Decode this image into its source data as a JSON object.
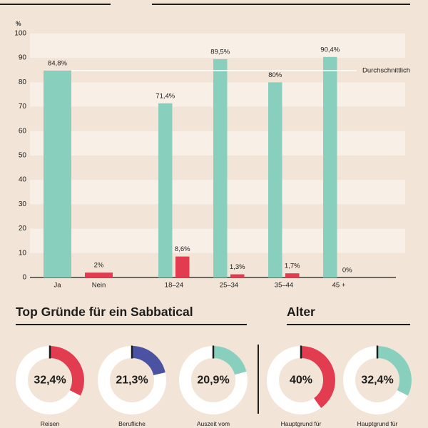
{
  "colors": {
    "background": "#f2e4d6",
    "band": "#f8efe7",
    "text": "#1d1d1b",
    "track": "#ffffff",
    "reference_line": "#ffffff"
  },
  "chart_data": [
    {
      "type": "bar",
      "ylabel": "%",
      "ylim": [
        0,
        100
      ],
      "yticks": [
        0,
        10,
        20,
        30,
        40,
        50,
        60,
        70,
        80,
        90,
        100
      ],
      "grid": true,
      "categories": [
        "Ja",
        "Nein",
        "18–24",
        "25–34",
        "35–44",
        "45 +"
      ],
      "series": [
        {
          "color": "#88d0bd",
          "values": [
            84.8,
            null,
            71.4,
            89.5,
            80,
            90.4
          ],
          "labels": [
            "84,8%",
            null,
            "71,4%",
            "89,5%",
            "80%",
            "90,4%"
          ]
        },
        {
          "color": "#e23c50",
          "values": [
            null,
            2,
            8.6,
            1.3,
            1.7,
            0
          ],
          "labels": [
            null,
            "2%",
            "8,6%",
            "1,3%",
            "1,7%",
            "0%"
          ]
        }
      ],
      "reference_line": {
        "label": "Durchschnittlich",
        "value": 84.8
      }
    },
    {
      "type": "pie",
      "title": "Top Gründe für ein Sabbatical",
      "items": [
        {
          "value": 32.4,
          "label": "32,4%",
          "caption": "Reisen",
          "color": "#e23c50"
        },
        {
          "value": 21.3,
          "label": "21,3%",
          "caption": "Berufliche",
          "color": "#4b52a1"
        },
        {
          "value": 20.9,
          "label": "20,9%",
          "caption": "Auszeit vom",
          "color": "#88d0bd"
        }
      ]
    },
    {
      "type": "pie",
      "title": "Alter",
      "items": [
        {
          "value": 40,
          "label": "40%",
          "caption": "Hauptgrund für",
          "color": "#e23c50"
        },
        {
          "value": 32.4,
          "label": "32,4%",
          "caption": "Hauptgrund für",
          "color": "#88d0bd"
        }
      ]
    }
  ]
}
